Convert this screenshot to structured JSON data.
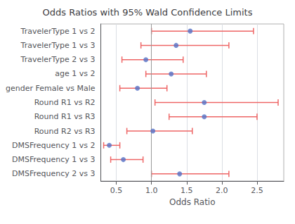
{
  "chart_data": {
    "type": "forest",
    "title": "Odds Ratios with 95% Wald Confidence Limits",
    "xlabel": "Odds Ratio",
    "categories": [
      "TravelerType 1 vs 2",
      "TravelerType 1 vs 3",
      "TravelerType 2 vs 3",
      "age 1 vs 2",
      "gender Female vs Male",
      "Round R1 vs R2",
      "Round R1 vs R3",
      "Round R2 vs R3",
      "DMSFrequency 1 vs 2",
      "DMSFrequency 1 vs 3",
      "DMSFrequency 2 vs 3"
    ],
    "values": [
      1.55,
      1.35,
      0.92,
      1.28,
      0.8,
      1.75,
      1.75,
      1.02,
      0.4,
      0.6,
      1.4
    ],
    "ci_low": [
      1.0,
      0.85,
      0.58,
      0.92,
      0.55,
      1.05,
      1.25,
      0.65,
      0.32,
      0.42,
      1.0
    ],
    "ci_high": [
      2.45,
      2.1,
      1.45,
      1.78,
      1.22,
      2.8,
      2.5,
      1.58,
      0.55,
      0.88,
      2.1
    ],
    "orientation": "horizontal",
    "xlim": [
      0.28,
      2.88
    ],
    "xticks": [
      0.5,
      {
        "value": 1.0,
        "label": "1.0"
      },
      1.5,
      {
        "value": 2.0,
        "label": "2.0"
      },
      2.5
    ],
    "reference_line": 1.0,
    "grid": true
  }
}
